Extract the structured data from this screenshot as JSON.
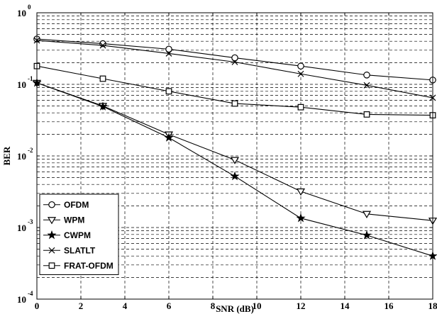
{
  "chart_data": {
    "type": "line",
    "title": "",
    "xlabel": "SNR (dB)",
    "ylabel": "BER",
    "xscale": "linear",
    "yscale": "log",
    "xlim": [
      0,
      18
    ],
    "ylim": [
      0.0001,
      1
    ],
    "xticks": [
      0,
      2,
      4,
      6,
      8,
      10,
      12,
      14,
      16,
      18
    ],
    "yticks": [
      {
        "base": "10",
        "exp": "0"
      },
      {
        "base": "10",
        "exp": "-1"
      },
      {
        "base": "10",
        "exp": "-2"
      },
      {
        "base": "10",
        "exp": "-3"
      },
      {
        "base": "10",
        "exp": "-4"
      }
    ],
    "grid": true,
    "legend_position": "bottom-left",
    "x": [
      0,
      3,
      6,
      9,
      12,
      15,
      18
    ],
    "series": [
      {
        "name": "OFDM",
        "marker": "circle",
        "values": [
          0.43,
          0.37,
          0.31,
          0.235,
          0.18,
          0.135,
          0.115
        ]
      },
      {
        "name": "WPM",
        "marker": "triangle-down",
        "values": [
          0.105,
          0.05,
          0.02,
          0.0088,
          0.0032,
          0.00155,
          0.00125
        ]
      },
      {
        "name": "CWPM",
        "marker": "star",
        "values": [
          0.105,
          0.049,
          0.018,
          0.0052,
          0.00135,
          0.00078,
          0.0004
        ]
      },
      {
        "name": "SLATLT",
        "marker": "x",
        "values": [
          0.41,
          0.35,
          0.27,
          0.205,
          0.14,
          0.097,
          0.065
        ]
      },
      {
        "name": "FRAT-OFDM",
        "marker": "square",
        "values": [
          0.18,
          0.12,
          0.08,
          0.054,
          0.048,
          0.038,
          0.037
        ]
      }
    ]
  }
}
